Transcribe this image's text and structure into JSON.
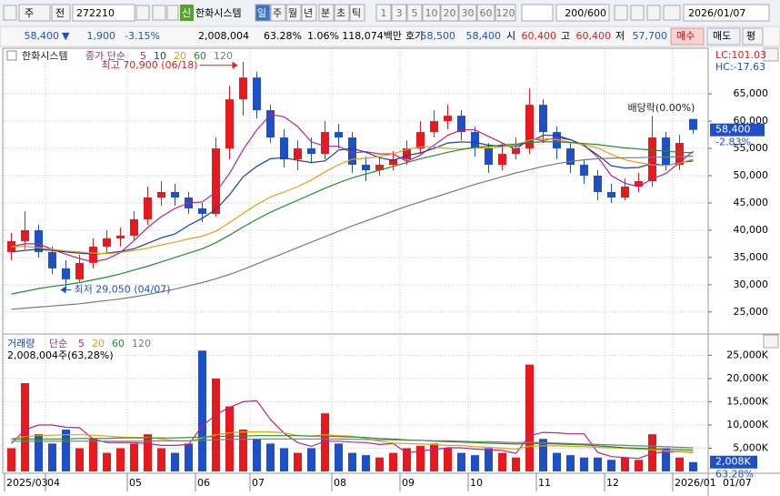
{
  "toolbar": {
    "market": "주",
    "prev": "전",
    "code": "272210",
    "credit": "신",
    "name": "한화시스템",
    "periods": [
      "일",
      "주",
      "월",
      "년",
      "분",
      "초",
      "틱"
    ],
    "intervals": [
      "1",
      "3",
      "5",
      "10",
      "20",
      "30",
      "60",
      "120"
    ],
    "count": "200/600",
    "date": "2026/01/07"
  },
  "quote": {
    "price": "58,400",
    "sign": "▼",
    "change": "1,900",
    "rate": "-3.15%",
    "volume": "2,008,004",
    "volume_rate": "63.28%",
    "turnover": "1.06%",
    "amount": "118,074백만",
    "ask_label": "호가",
    "ask": "58,500",
    "bid": "58,400",
    "open_label": "시",
    "open": "60,400",
    "high_label": "고",
    "high": "60,400",
    "low_label": "저",
    "low": "57,700",
    "buy": "매수",
    "sell": "매도",
    "avg": "평"
  },
  "chart_data": [
    {
      "type": "candlestick",
      "name": "한화시스템",
      "legend_prefix": "종가 단순",
      "lc_label": "LC:101.03",
      "hc_label": "HC:-17.63",
      "up_color": "#e8191d",
      "down_color": "#1f4fc4",
      "open": [
        36000,
        38000,
        40000,
        36000,
        33000,
        31000,
        34000,
        37000,
        38500,
        39000,
        42000,
        46000,
        47000,
        46000,
        44000,
        43000,
        55000,
        64000,
        68000,
        62000,
        57000,
        53000,
        55000,
        54000,
        58000,
        57000,
        52000,
        51000,
        52000,
        53000,
        55000,
        58000,
        60000,
        61000,
        58000,
        55000,
        52000,
        54000,
        55000,
        63000,
        58000,
        55000,
        52000,
        50000,
        47000,
        46000,
        48000,
        49000,
        57000,
        52000,
        60400
      ],
      "high": [
        39500,
        43500,
        41000,
        37000,
        34500,
        35500,
        38500,
        40000,
        40500,
        43500,
        48000,
        49000,
        48500,
        47000,
        45000,
        57000,
        66500,
        70900,
        69000,
        63000,
        58500,
        56500,
        57000,
        60000,
        59500,
        58000,
        53500,
        53500,
        54500,
        56500,
        60000,
        62000,
        63000,
        62000,
        59000,
        56000,
        56000,
        57000,
        66000,
        64000,
        59000,
        56000,
        53000,
        51000,
        48500,
        49500,
        50500,
        61000,
        58000,
        57500,
        60400
      ],
      "low": [
        34500,
        36500,
        35000,
        32000,
        29050,
        30500,
        33000,
        36000,
        37000,
        38000,
        41000,
        44500,
        44500,
        43000,
        41500,
        42500,
        53000,
        61000,
        60500,
        56000,
        51500,
        51000,
        52500,
        53000,
        55000,
        50500,
        49000,
        50000,
        51000,
        52000,
        54000,
        57000,
        58500,
        56500,
        53500,
        50500,
        51000,
        53000,
        54000,
        56000,
        53000,
        50500,
        48500,
        45500,
        45000,
        45500,
        47000,
        48000,
        51000,
        51000,
        57700
      ],
      "close": [
        38000,
        40000,
        36000,
        33000,
        31000,
        34000,
        37000,
        38500,
        39000,
        42000,
        46000,
        47000,
        46000,
        44000,
        43000,
        55000,
        64000,
        68000,
        62000,
        57000,
        53000,
        55000,
        54000,
        58000,
        57000,
        52000,
        51000,
        52000,
        53000,
        55000,
        58000,
        60000,
        61000,
        58000,
        55000,
        52000,
        54000,
        55000,
        63000,
        58000,
        55000,
        52000,
        50000,
        47000,
        46000,
        48000,
        49000,
        57000,
        52000,
        56000,
        58400
      ],
      "series": [
        {
          "name": "5",
          "color": "#c0208a",
          "values": [
            37000,
            37500,
            37500,
            36500,
            35600,
            34800,
            34200,
            34700,
            35900,
            38100,
            40500,
            42500,
            44000,
            45000,
            45200,
            47000,
            50400,
            54800,
            58400,
            61200,
            60800,
            59000,
            56200,
            55400,
            55400,
            54200,
            54400,
            54000,
            54000,
            52600,
            53800,
            55600,
            57400,
            58400,
            58400,
            57200,
            56000,
            54800,
            56800,
            56400,
            57000,
            56600,
            55600,
            53400,
            50000,
            48600,
            48000,
            49400,
            50400,
            52400,
            54480
          ]
        },
        {
          "name": "10",
          "color": "#1a3ca8",
          "values": [
            36000,
            36300,
            36500,
            36300,
            36000,
            35800,
            35600,
            35800,
            36100,
            36600,
            37600,
            38600,
            39300,
            40900,
            42200,
            43800,
            46500,
            49800,
            51700,
            53100,
            53300,
            52800,
            52400,
            52700,
            54700,
            55000,
            54300,
            53300,
            52800,
            53700,
            54200,
            55000,
            56000,
            56200,
            56100,
            55600,
            55400,
            55400,
            56200,
            57400,
            57400,
            56600,
            55500,
            53800,
            51800,
            51400,
            51500,
            52200,
            51800,
            52400,
            52700
          ]
        },
        {
          "name": "20",
          "color": "#e8a00c",
          "values": [
            37000,
            37000,
            36800,
            36500,
            36200,
            36000,
            35800,
            35700,
            35900,
            36300,
            36700,
            37300,
            37800,
            38400,
            38900,
            39800,
            41400,
            43100,
            44700,
            46100,
            47000,
            48000,
            49200,
            50700,
            52000,
            53000,
            53200,
            53500,
            54000,
            54800,
            55300,
            55300,
            55000,
            54900,
            55100,
            55100,
            55300,
            55600,
            56500,
            56800,
            56600,
            56100,
            55700,
            55100,
            53900,
            52900,
            52400,
            52000,
            51800,
            52300,
            53000
          ]
        },
        {
          "name": "60",
          "color": "#1f8f2a",
          "values": [
            28300,
            28800,
            29300,
            29700,
            30000,
            30400,
            30900,
            31400,
            32000,
            32700,
            33400,
            34200,
            35000,
            35800,
            36600,
            37700,
            39100,
            40600,
            42000,
            43300,
            44400,
            45500,
            46600,
            47700,
            48700,
            49600,
            50300,
            51000,
            51700,
            52400,
            53100,
            53700,
            54300,
            54800,
            55200,
            55400,
            55600,
            55800,
            56100,
            56200,
            56200,
            56100,
            55900,
            55700,
            55400,
            55100,
            54900,
            54700,
            54500,
            54300,
            54200
          ]
        },
        {
          "name": "120",
          "color": "#7a7a7a",
          "values": [
            25500,
            25700,
            25900,
            26100,
            26300,
            26500,
            26800,
            27100,
            27400,
            27800,
            28200,
            28700,
            29200,
            29800,
            30400,
            31100,
            31900,
            32800,
            33800,
            34800,
            35800,
            36800,
            37800,
            38800,
            39800,
            40800,
            41700,
            42600,
            43500,
            44400,
            45200,
            46000,
            46800,
            47600,
            48400,
            49100,
            49800,
            50500,
            51100,
            51700,
            52200,
            52600,
            52900,
            53100,
            53200,
            53300,
            53300,
            53400,
            53400,
            53500,
            53600
          ]
        }
      ],
      "annotations": [
        {
          "text": "최고 70,900 (06/18)",
          "x": 17,
          "y": 70900,
          "color": "#e8191d"
        },
        {
          "text": "최저 29,050 (04/07)",
          "x": 4,
          "y": 29050,
          "color": "#1f4fc4"
        },
        {
          "text": "배당락(0.00%)",
          "x": 47,
          "y": 61000,
          "color": "#222222"
        }
      ],
      "last_tag": "58,400",
      "last_change": "-2.83%",
      "xlim": [
        -0.5,
        50.5
      ],
      "ylim": [
        21300,
        72200
      ],
      "yticks": [
        {
          "value": 25000,
          "label": "25,000"
        },
        {
          "value": 30000,
          "label": "30,000"
        },
        {
          "value": 35000,
          "label": "35,000"
        },
        {
          "value": 40000,
          "label": "40,000"
        },
        {
          "value": 45000,
          "label": "45,000"
        },
        {
          "value": 50000,
          "label": "50,000"
        },
        {
          "value": 55000,
          "label": "55,000"
        },
        {
          "value": 60000,
          "label": "60,000"
        },
        {
          "value": 65000,
          "label": "65,000"
        }
      ],
      "grid": true
    },
    {
      "type": "bar",
      "name": "거래량",
      "legend_prefix": "단순",
      "summary": "2,008,004주(63,28%)",
      "tag": "2,008K",
      "tag_change": "63.28%",
      "values": [
        5000,
        19000,
        8000,
        6000,
        9000,
        5000,
        7000,
        4000,
        5000,
        6000,
        8000,
        5000,
        4000,
        6000,
        26000,
        20000,
        14000,
        9000,
        7000,
        6000,
        5000,
        4000,
        5000,
        12500,
        6000,
        4000,
        3500,
        3000,
        4000,
        5000,
        5500,
        6000,
        5000,
        4000,
        3500,
        5000,
        4000,
        3000,
        23000,
        7000,
        4000,
        3500,
        3000,
        3000,
        2500,
        3000,
        2500,
        8000,
        5000,
        3000,
        2008
      ],
      "series": [
        {
          "name": "5",
          "color": "#c0208a",
          "values": [
            6000,
            9000,
            10000,
            10000,
            9500,
            9400,
            7000,
            6200,
            6200,
            6200,
            6000,
            5600,
            5600,
            5800,
            9800,
            12200,
            13800,
            15000,
            15200,
            11200,
            8200,
            6200,
            5400,
            6500,
            6500,
            6300,
            6200,
            5800,
            6000,
            4000,
            4400,
            4700,
            5100,
            5100,
            4800,
            4700,
            4500,
            3900,
            7700,
            8400,
            8300,
            8100,
            8100,
            4100,
            3200,
            3000,
            2800,
            3900,
            4200,
            4300,
            4100
          ]
        },
        {
          "name": "20",
          "color": "#e8a00c",
          "values": [
            7000,
            7500,
            7700,
            7800,
            7900,
            7900,
            7800,
            7600,
            7400,
            7300,
            7300,
            7000,
            6600,
            6500,
            7200,
            7900,
            8300,
            8500,
            8500,
            8500,
            8300,
            7700,
            7600,
            7900,
            7700,
            7600,
            7100,
            6500,
            6100,
            6000,
            5900,
            5800,
            5600,
            5600,
            5300,
            5200,
            5000,
            4800,
            5400,
            5500,
            5500,
            5400,
            5300,
            5200,
            5100,
            5000,
            4800,
            4700,
            4400,
            4300,
            4200
          ]
        },
        {
          "name": "60",
          "color": "#1f8f2a",
          "values": [
            7000,
            7000,
            7000,
            7000,
            7000,
            7100,
            7100,
            7100,
            7200,
            7200,
            7200,
            7200,
            7200,
            7300,
            7400,
            7500,
            7600,
            7600,
            7700,
            7700,
            7700,
            7700,
            7600,
            7600,
            7500,
            7400,
            7300,
            7100,
            7000,
            6800,
            6700,
            6500,
            6400,
            6300,
            6200,
            6100,
            6000,
            5900,
            6000,
            6000,
            5900,
            5800,
            5700,
            5500,
            5300,
            5100,
            5000,
            4900,
            4800,
            4700,
            4600
          ]
        },
        {
          "name": "120",
          "color": "#7a7a7a",
          "values": [
            6500,
            6500,
            6500,
            6500,
            6500,
            6500,
            6500,
            6500,
            6500,
            6500,
            6500,
            6600,
            6600,
            6600,
            6700,
            6800,
            6900,
            6900,
            7000,
            7000,
            7000,
            7000,
            7000,
            7000,
            7000,
            6900,
            6900,
            6800,
            6800,
            6700,
            6700,
            6600,
            6600,
            6500,
            6400,
            6400,
            6300,
            6200,
            6300,
            6200,
            6100,
            6000,
            5900,
            5800,
            5700,
            5600,
            5500,
            5400,
            5300,
            5200,
            5100
          ]
        }
      ],
      "xlim": [
        -0.5,
        50.5
      ],
      "ylim": [
        0,
        28600
      ],
      "yticks": [
        {
          "value": 5000,
          "label": "5,000K"
        },
        {
          "value": 10000,
          "label": "10,000K"
        },
        {
          "value": 15000,
          "label": "15,000K"
        },
        {
          "value": 20000,
          "label": "20,000K"
        },
        {
          "value": 25000,
          "label": "25,000K"
        }
      ],
      "xticks": [
        {
          "value": 0,
          "label": "2025/03"
        },
        {
          "value": 3,
          "label": "04"
        },
        {
          "value": 9,
          "label": "05"
        },
        {
          "value": 14,
          "label": "06"
        },
        {
          "value": 18,
          "label": "07"
        },
        {
          "value": 24,
          "label": "08"
        },
        {
          "value": 29,
          "label": "09"
        },
        {
          "value": 34,
          "label": "10"
        },
        {
          "value": 39,
          "label": "11"
        },
        {
          "value": 44,
          "label": "12"
        },
        {
          "value": 49,
          "label": "2026/01"
        }
      ],
      "end_label": "01/07",
      "grid": true
    }
  ]
}
